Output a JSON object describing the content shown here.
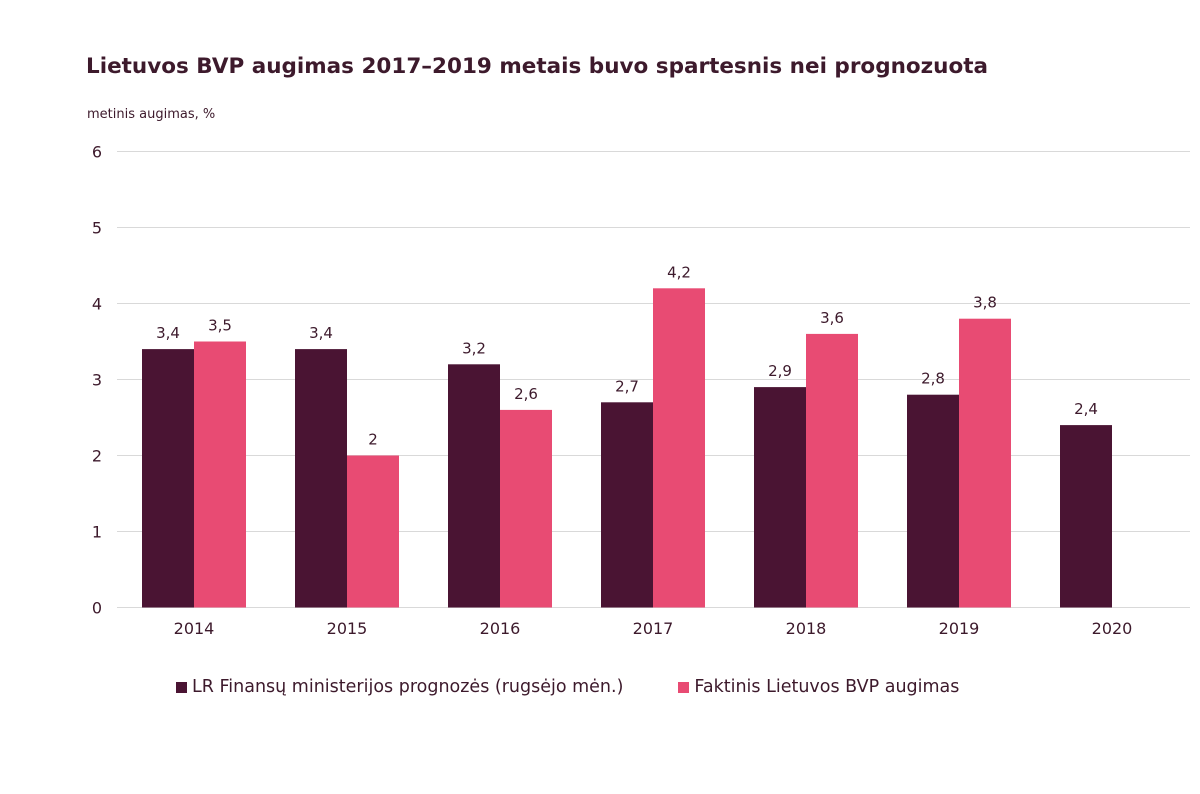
{
  "title": "Lietuvos BVP augimas 2017–2019 metais buvo spartesnis nei prognozuota",
  "colors": {
    "forecast": "#4a1433",
    "actual": "#e84b73",
    "grid": "#d9d9d9",
    "text": "#3d1a2c"
  },
  "chart_data": {
    "type": "bar",
    "title": "Lietuvos BVP augimas 2017–2019 metais buvo spartesnis nei prognozuota",
    "ylabel": "metinis augimas, %",
    "xlabel": "",
    "ylim": [
      0,
      6
    ],
    "yticks": [
      "0",
      "1",
      "2",
      "3",
      "4",
      "5",
      "6"
    ],
    "grid": true,
    "legend_position": "bottom",
    "categories": [
      "2014",
      "2015",
      "2016",
      "2017",
      "2018",
      "2019",
      "2020"
    ],
    "series": [
      {
        "name": "LR Finansų ministerijos prognozės (rugsėjo mėn.)",
        "values": [
          3.4,
          3.4,
          3.2,
          2.7,
          2.9,
          2.8,
          2.4
        ],
        "labels": [
          "3,4",
          "3,4",
          "3,2",
          "2,7",
          "2,9",
          "2,8",
          "2,4"
        ]
      },
      {
        "name": "Faktinis Lietuvos BVP augimas",
        "values": [
          3.5,
          2.0,
          2.6,
          4.2,
          3.6,
          3.8,
          null
        ],
        "labels": [
          "3,5",
          "2",
          "2,6",
          "4,2",
          "3,6",
          "3,8",
          ""
        ]
      }
    ]
  }
}
